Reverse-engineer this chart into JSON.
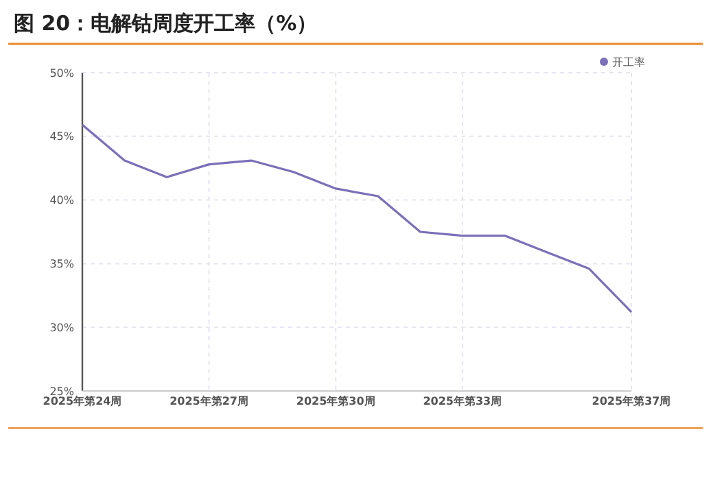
{
  "chart_data": {
    "type": "line",
    "title": "图 20：电解钴周度开工率（%）",
    "categories": [
      "2025年第24周",
      null,
      null,
      "2025年第27周",
      null,
      null,
      "2025年第30周",
      null,
      null,
      "2025年第33周",
      null,
      null,
      null,
      "2025年第37周"
    ],
    "series": [
      {
        "name": "开工率",
        "color": "#7b6fb8",
        "values": [
          45.9,
          43.1,
          41.8,
          42.8,
          43.1,
          42.2,
          40.9,
          40.3,
          37.5,
          37.2,
          37.2,
          35.9,
          34.6,
          31.2
        ]
      }
    ],
    "ylim": [
      25,
      50
    ],
    "yticks": [
      {
        "value": 25,
        "label": "25%"
      },
      {
        "value": 30,
        "label": "30%"
      },
      {
        "value": 35,
        "label": "35%"
      },
      {
        "value": 40,
        "label": "40%"
      },
      {
        "value": 45,
        "label": "45%"
      },
      {
        "value": 50,
        "label": "50%"
      }
    ],
    "grid": true,
    "legend": "top right",
    "marker": "none",
    "line_style": "solid"
  }
}
